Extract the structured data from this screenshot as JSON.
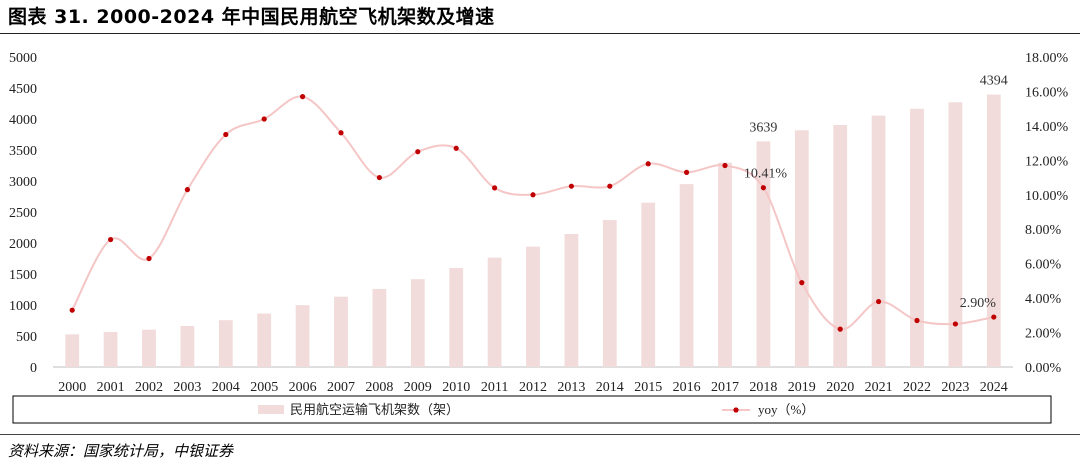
{
  "title": "图表 31.   2000-2024 年中国民用航空飞机架数及增速",
  "source": "资料来源：国家统计局，中银证券",
  "chart_data": {
    "type": "bar+line",
    "categories": [
      "2000",
      "2001",
      "2002",
      "2003",
      "2004",
      "2005",
      "2006",
      "2007",
      "2008",
      "2009",
      "2010",
      "2011",
      "2012",
      "2013",
      "2014",
      "2015",
      "2016",
      "2017",
      "2018",
      "2019",
      "2020",
      "2021",
      "2022",
      "2023",
      "2024"
    ],
    "y_left": {
      "range": [
        0,
        5000
      ],
      "ticks": [
        "0",
        "500",
        "1000",
        "1500",
        "2000",
        "2500",
        "3000",
        "3500",
        "4000",
        "4500",
        "5000"
      ]
    },
    "y_right": {
      "range": [
        0,
        18
      ],
      "ticks": [
        "0.00%",
        "2.00%",
        "4.00%",
        "6.00%",
        "8.00%",
        "10.00%",
        "12.00%",
        "14.00%",
        "16.00%",
        "18.00%"
      ]
    },
    "series": [
      {
        "name": "民用航空运输飞机架数（架）",
        "type": "bar",
        "axis": "left",
        "color": "#f2dcdb",
        "values": [
          527,
          566,
          602,
          662,
          755,
          863,
          998,
          1134,
          1259,
          1417,
          1597,
          1764,
          1941,
          2145,
          2370,
          2650,
          2950,
          3296,
          3639,
          3818,
          3903,
          4054,
          4165,
          4270,
          4394
        ]
      },
      {
        "name": "yoy（%）",
        "type": "line",
        "axis": "right",
        "color": "#f5c6c6",
        "marker_color": "#c00000",
        "values": [
          3.3,
          7.4,
          6.3,
          10.3,
          13.5,
          14.4,
          15.7,
          13.6,
          11.0,
          12.5,
          12.7,
          10.4,
          10.0,
          10.5,
          10.5,
          11.8,
          11.3,
          11.7,
          10.41,
          4.9,
          2.2,
          3.8,
          2.7,
          2.5,
          2.9
        ]
      }
    ],
    "data_labels": [
      {
        "series": 0,
        "index": 18,
        "text": "3639"
      },
      {
        "series": 0,
        "index": 24,
        "text": "4394"
      },
      {
        "series": 1,
        "index": 18,
        "text": "10.41%"
      },
      {
        "series": 1,
        "index": 24,
        "text": "2.90%"
      }
    ],
    "legend": {
      "position": "bottom",
      "framed": true
    }
  }
}
